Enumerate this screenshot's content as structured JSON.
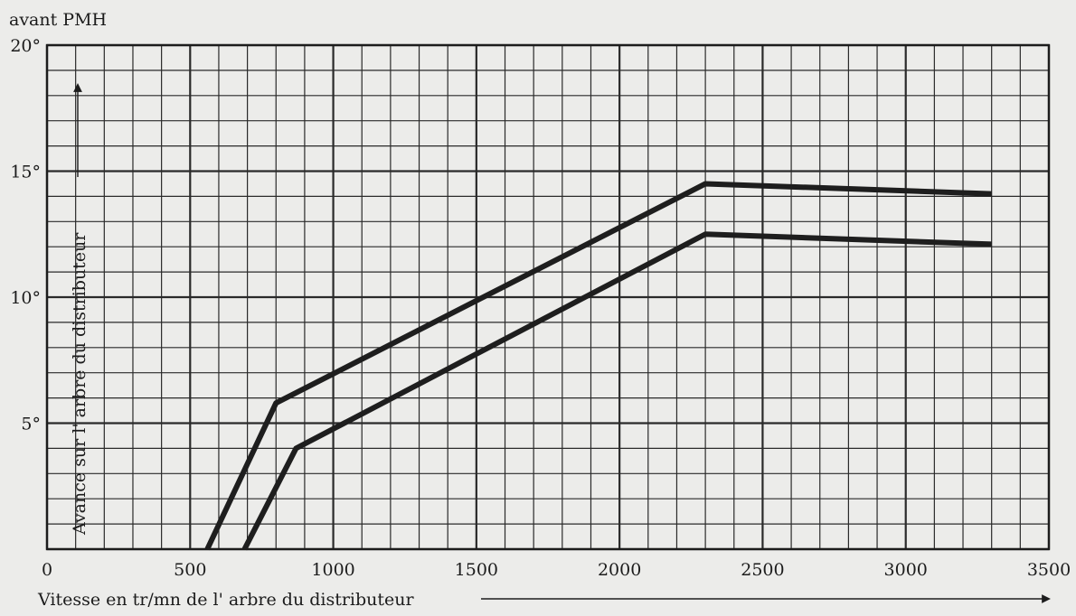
{
  "chart_data": {
    "type": "line",
    "corner_label": "avant PMH",
    "xlabel": "Vitesse en tr/mn de l' arbre du distributeur",
    "ylabel": "Avance sur l' arbre du distributeur",
    "xlim": [
      0,
      3500
    ],
    "ylim": [
      0,
      20
    ],
    "x_ticks": [
      0,
      500,
      1000,
      1500,
      2000,
      2500,
      3000,
      3500
    ],
    "x_tick_labels": [
      "0",
      "500",
      "1000",
      "1500",
      "2000",
      "2500",
      "3000",
      "3500"
    ],
    "y_ticks": [
      5,
      10,
      15,
      20
    ],
    "y_tick_labels": [
      "5°",
      "10°",
      "15°",
      "20°"
    ],
    "grid": {
      "on": true,
      "x_minor_step": 100,
      "y_minor_step": 1,
      "x_major_step": 500,
      "y_major_step": 5
    },
    "series": [
      {
        "name": "upper",
        "x": [
          560,
          800,
          2300,
          3300
        ],
        "y": [
          0,
          5.8,
          14.5,
          14.1
        ]
      },
      {
        "name": "lower",
        "x": [
          690,
          870,
          2300,
          3300
        ],
        "y": [
          0,
          4.0,
          12.5,
          12.1
        ]
      }
    ],
    "colors": {
      "line": "#1e1e1e",
      "grid": "#2a2a2a",
      "background": "#ececea"
    }
  }
}
